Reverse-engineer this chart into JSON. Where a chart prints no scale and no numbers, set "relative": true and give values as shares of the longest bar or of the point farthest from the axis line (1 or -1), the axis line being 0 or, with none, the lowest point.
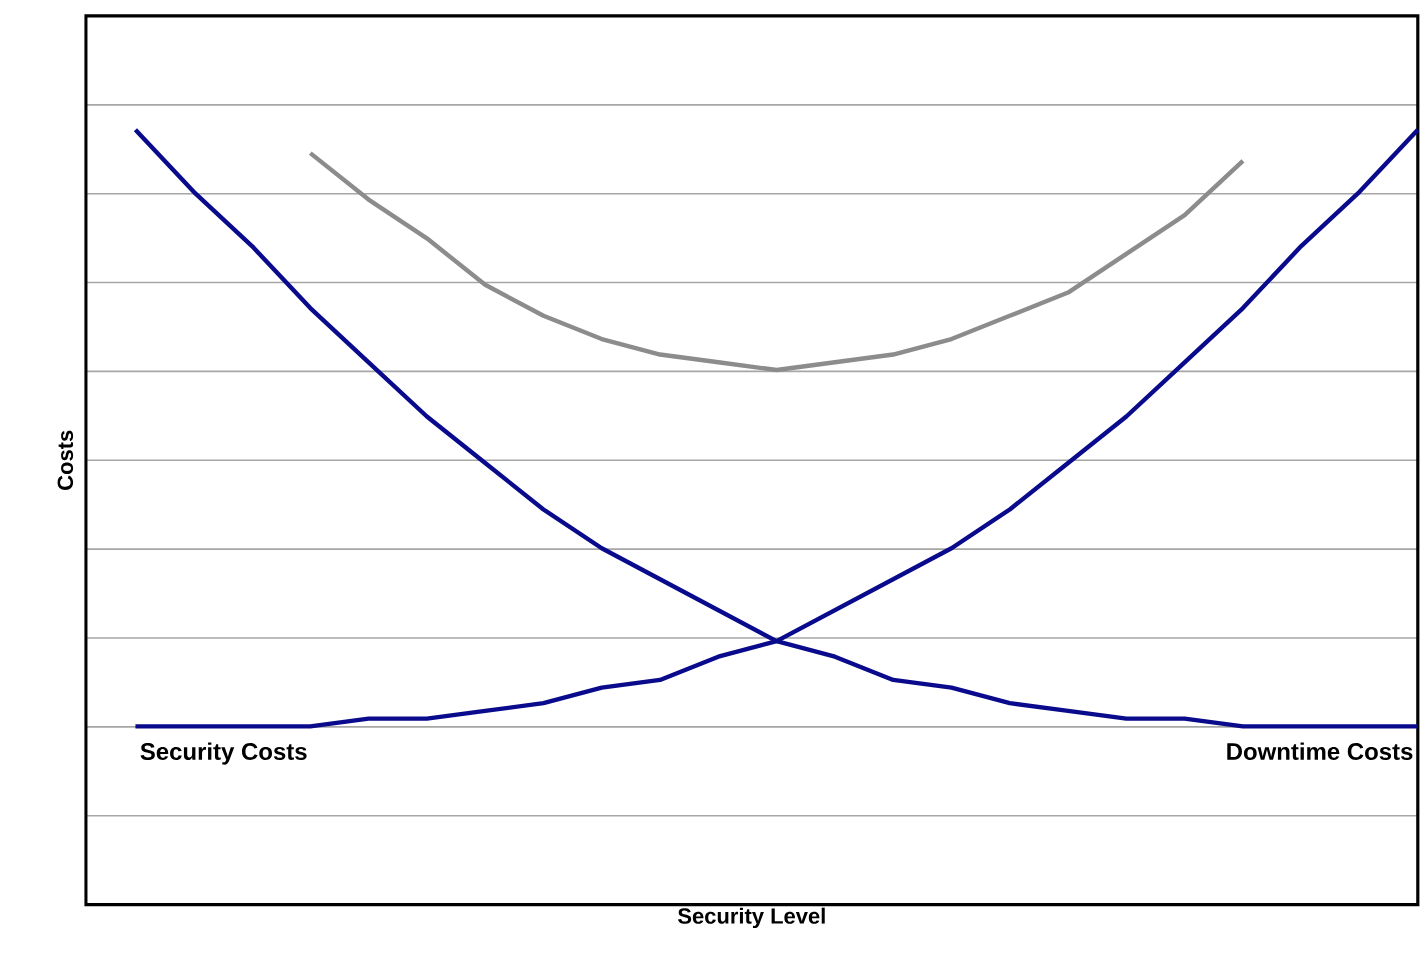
{
  "chart_data": {
    "type": "line",
    "relative": true,
    "xlabel": "Security Level",
    "ylabel": "Costs",
    "categories": [
      null,
      null,
      null,
      null,
      null,
      null,
      null,
      null,
      null,
      null,
      null,
      null,
      null,
      null,
      null,
      null,
      null,
      null,
      null,
      null,
      null,
      null,
      null
    ],
    "series": [
      {
        "name": "Security Costs",
        "color": "#0a0a8c",
        "values": [
          0.23,
          0.23,
          0.23,
          0.23,
          0.24,
          0.24,
          0.25,
          0.26,
          0.28,
          0.29,
          0.32,
          0.34,
          0.38,
          0.42,
          0.46,
          0.51,
          0.57,
          0.63,
          0.7,
          0.77,
          0.85,
          0.92,
          1.0
        ]
      },
      {
        "name": "Downtime Costs",
        "color": "#0a0a8c",
        "values": [
          1.0,
          0.92,
          0.85,
          0.77,
          0.7,
          0.63,
          0.57,
          0.51,
          0.46,
          0.42,
          0.38,
          0.34,
          0.32,
          0.29,
          0.28,
          0.26,
          0.25,
          0.24,
          0.24,
          0.23,
          0.23,
          0.23,
          0.23
        ]
      },
      {
        "color": "#8c8c8c",
        "values": [
          null,
          null,
          null,
          0.97,
          0.91,
          0.86,
          0.8,
          0.76,
          0.73,
          0.71,
          0.7,
          0.69,
          0.7,
          0.71,
          0.73,
          0.76,
          0.79,
          0.84,
          0.89,
          0.96,
          null,
          null,
          null
        ]
      }
    ],
    "grid": "y",
    "marker": "none"
  }
}
